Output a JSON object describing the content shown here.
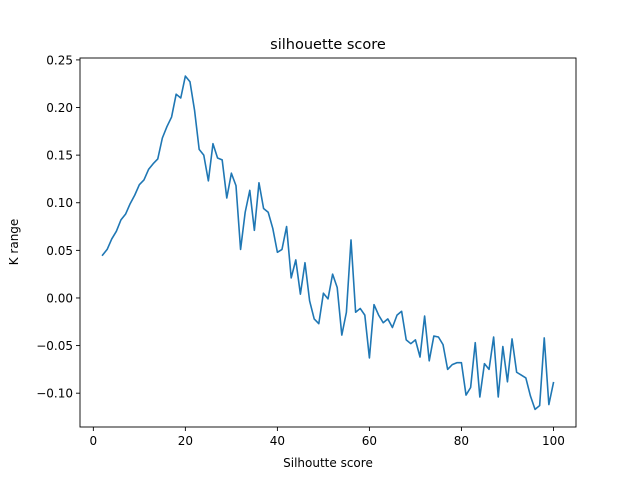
{
  "chart_data": {
    "type": "line",
    "title": "silhouette score",
    "xlabel": "Silhoutte score",
    "ylabel": "K range",
    "xlim": [
      -2.9,
      104.9
    ],
    "ylim": [
      -0.1355,
      0.252
    ],
    "xticks": [
      0,
      20,
      40,
      60,
      80,
      100
    ],
    "xtick_labels": [
      "0",
      "20",
      "40",
      "60",
      "80",
      "100"
    ],
    "yticks": [
      -0.1,
      -0.05,
      0.0,
      0.05,
      0.1,
      0.15,
      0.2,
      0.25
    ],
    "ytick_labels": [
      "−0.10",
      "−0.05",
      "0.00",
      "0.05",
      "0.10",
      "0.15",
      "0.20",
      "0.25"
    ],
    "grid": false,
    "color": "#1f77b4",
    "series": [
      {
        "x": [
          2,
          3,
          4,
          5,
          6,
          7,
          8,
          9,
          10,
          11,
          12,
          13,
          14,
          15,
          16,
          17,
          18,
          19,
          20,
          21,
          22,
          23,
          24,
          25,
          26,
          27,
          28,
          29,
          30,
          31,
          32,
          33,
          34,
          35,
          36,
          37,
          38,
          39,
          40,
          41,
          42,
          43,
          44,
          45,
          46,
          47,
          48,
          49,
          50,
          51,
          52,
          53,
          54,
          55,
          56,
          57,
          58,
          59,
          60,
          61,
          62,
          63,
          64,
          65,
          66,
          67,
          68,
          69,
          70,
          71,
          72,
          73,
          74,
          75,
          76,
          77,
          78,
          79,
          80,
          81,
          82,
          83,
          84,
          85,
          86,
          87,
          88,
          89,
          90,
          91,
          92,
          93,
          94,
          95,
          96,
          97,
          98,
          99,
          100
        ],
        "values": [
          0.045,
          0.051,
          0.062,
          0.07,
          0.082,
          0.088,
          0.099,
          0.108,
          0.119,
          0.124,
          0.135,
          0.141,
          0.146,
          0.168,
          0.18,
          0.19,
          0.214,
          0.21,
          0.233,
          0.227,
          0.197,
          0.156,
          0.15,
          0.123,
          0.162,
          0.147,
          0.145,
          0.105,
          0.131,
          0.118,
          0.051,
          0.09,
          0.113,
          0.071,
          0.121,
          0.094,
          0.09,
          0.073,
          0.048,
          0.051,
          0.075,
          0.021,
          0.04,
          0.004,
          0.037,
          -0.003,
          -0.022,
          -0.027,
          0.005,
          -0.001,
          0.025,
          0.011,
          -0.039,
          -0.015,
          0.061,
          -0.015,
          -0.011,
          -0.018,
          -0.063,
          -0.007,
          -0.018,
          -0.026,
          -0.022,
          -0.031,
          -0.018,
          -0.014,
          -0.044,
          -0.048,
          -0.044,
          -0.062,
          -0.019,
          -0.066,
          -0.04,
          -0.041,
          -0.049,
          -0.075,
          -0.07,
          -0.068,
          -0.068,
          -0.102,
          -0.094,
          -0.047,
          -0.104,
          -0.069,
          -0.075,
          -0.041,
          -0.104,
          -0.051,
          -0.088,
          -0.043,
          -0.078,
          -0.081,
          -0.084,
          -0.103,
          -0.117,
          -0.113,
          -0.042,
          -0.112,
          -0.089
        ]
      }
    ]
  }
}
